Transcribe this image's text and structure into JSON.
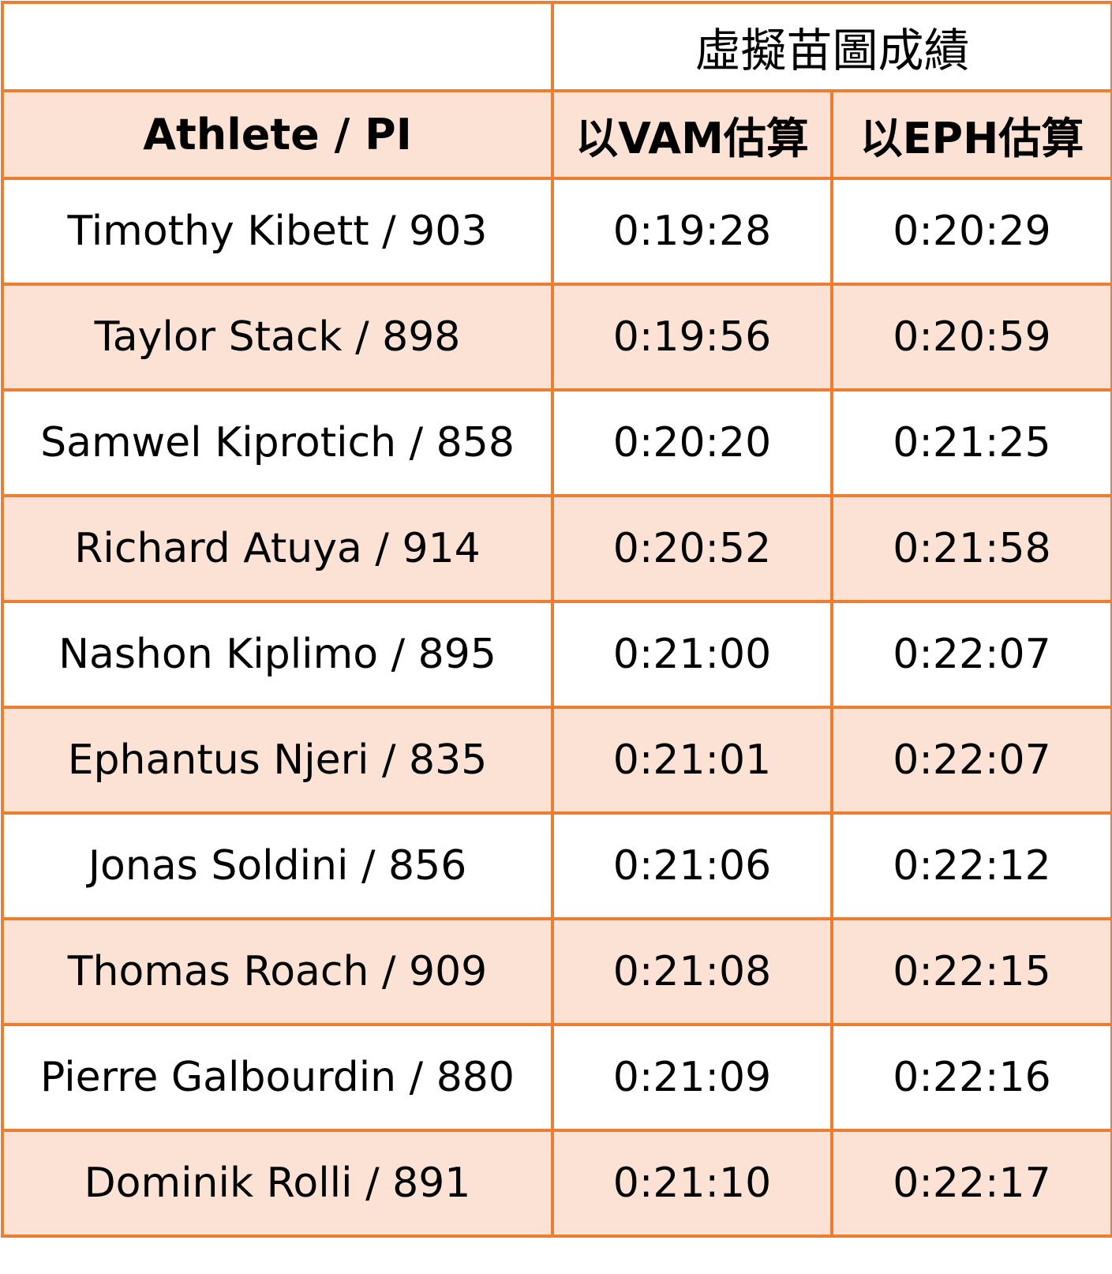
{
  "header": {
    "title": "虛擬苗圖成績"
  },
  "table": {
    "columns": [
      "Athlete / PI",
      "以VAM估算",
      "以EPH估算"
    ],
    "rows": [
      [
        "Timothy Kibett / 903",
        "0:19:28",
        "0:20:29"
      ],
      [
        "Taylor Stack / 898",
        "0:19:56",
        "0:20:59"
      ],
      [
        "Samwel Kiprotich / 858",
        "0:20:20",
        "0:21:25"
      ],
      [
        "Richard Atuya / 914",
        "0:20:52",
        "0:21:58"
      ],
      [
        "Nashon Kiplimo / 895",
        "0:21:00",
        "0:22:07"
      ],
      [
        "Ephantus Njeri / 835",
        "0:21:01",
        "0:22:07"
      ],
      [
        "Jonas Soldini / 856",
        "0:21:06",
        "0:22:12"
      ],
      [
        "Thomas Roach / 909",
        "0:21:08",
        "0:22:15"
      ],
      [
        "Pierre Galbourdin / 880",
        "0:21:09",
        "0:22:16"
      ],
      [
        "Dominik Rolli / 891",
        "0:21:10",
        "0:22:17"
      ]
    ]
  }
}
